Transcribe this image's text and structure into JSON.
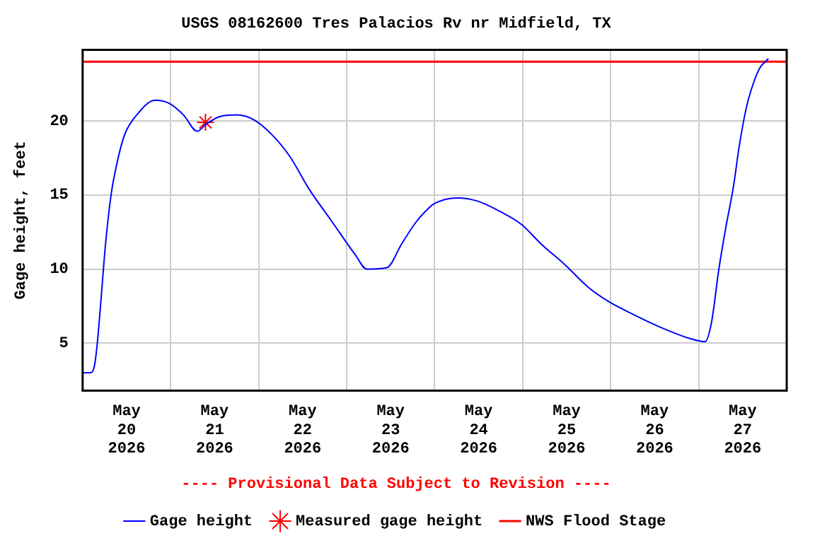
{
  "chart_data": {
    "type": "line",
    "title": "USGS 08162600 Tres Palacios Rv nr Midfield, TX",
    "ylabel": "Gage height, feet",
    "annotations": [
      "---- Provisional Data Subject to Revision ----"
    ],
    "xlim": [
      "2026-05-20T00:00",
      "2026-05-28T00:00"
    ],
    "xticks": [
      {
        "value": "2026-05-20T12:00",
        "label": "May\n20\n2026"
      },
      {
        "value": "2026-05-21T12:00",
        "label": "May\n21\n2026"
      },
      {
        "value": "2026-05-22T12:00",
        "label": "May\n22\n2026"
      },
      {
        "value": "2026-05-23T12:00",
        "label": "May\n23\n2026"
      },
      {
        "value": "2026-05-24T12:00",
        "label": "May\n24\n2026"
      },
      {
        "value": "2026-05-25T12:00",
        "label": "May\n25\n2026"
      },
      {
        "value": "2026-05-26T12:00",
        "label": "May\n26\n2026"
      },
      {
        "value": "2026-05-27T12:00",
        "label": "May\n27\n2026"
      },
      {
        "value": "2026-05-21T00:00",
        "label": null
      },
      {
        "value": "2026-05-22T00:00",
        "label": null
      },
      {
        "value": "2026-05-23T00:00",
        "label": null
      },
      {
        "value": "2026-05-24T00:00",
        "label": null
      },
      {
        "value": "2026-05-25T00:00",
        "label": null
      },
      {
        "value": "2026-05-26T00:00",
        "label": null
      },
      {
        "value": "2026-05-27T00:00",
        "label": null
      }
    ],
    "ylim": [
      1.8,
      24.8
    ],
    "yticks": [
      5,
      10,
      15,
      20
    ],
    "grid": true,
    "legend": "bottom",
    "ref_lines": [
      {
        "axis": "y",
        "value": 24.0,
        "label": "NWS Flood Stage",
        "color": "#ff0000"
      }
    ],
    "series": [
      {
        "name": "Gage height",
        "color": "#0000ff",
        "marker": "none",
        "x": [
          "2026-05-20T00:00",
          "2026-05-20T02:00",
          "2026-05-20T03:15",
          "2026-05-20T04:00",
          "2026-05-20T05:00",
          "2026-05-20T06:15",
          "2026-05-20T07:45",
          "2026-05-20T09:30",
          "2026-05-20T11:30",
          "2026-05-20T14:45",
          "2026-05-20T19:45",
          "2026-05-20T23:30",
          "2026-05-21T03:30",
          "2026-05-21T07:15",
          "2026-05-21T09:45",
          "2026-05-21T13:30",
          "2026-05-21T18:00",
          "2026-05-21T22:30",
          "2026-05-22T03:30",
          "2026-05-22T08:30",
          "2026-05-22T13:45",
          "2026-05-22T20:00",
          "2026-05-23T02:15",
          "2026-05-23T05:30",
          "2026-05-23T11:00",
          "2026-05-23T15:00",
          "2026-05-23T19:00",
          "2026-05-23T22:45",
          "2026-05-23T23:45",
          "2026-05-24T06:15",
          "2026-05-24T11:30",
          "2026-05-24T17:45",
          "2026-05-24T23:45",
          "2026-05-25T05:00",
          "2026-05-25T11:30",
          "2026-05-25T17:45",
          "2026-05-25T23:30",
          "2026-05-26T06:30",
          "2026-05-26T14:15",
          "2026-05-26T21:45",
          "2026-05-27T01:45",
          "2026-05-27T03:30",
          "2026-05-27T05:30",
          "2026-05-27T07:15",
          "2026-05-27T09:30",
          "2026-05-27T11:00",
          "2026-05-27T13:00",
          "2026-05-27T15:00",
          "2026-05-27T16:45",
          "2026-05-27T19:00"
        ],
        "values": [
          3.0,
          3.0,
          3.5,
          5.0,
          7.9,
          11.7,
          15.0,
          17.3,
          19.1,
          20.4,
          21.4,
          21.2,
          20.4,
          19.3,
          19.8,
          20.3,
          20.4,
          20.1,
          19.1,
          17.6,
          15.4,
          13.2,
          11.0,
          10.0,
          10.1,
          11.7,
          13.2,
          14.2,
          14.4,
          14.8,
          14.6,
          13.9,
          13.0,
          11.7,
          10.3,
          8.8,
          7.8,
          6.9,
          6.0,
          5.3,
          5.1,
          6.4,
          10.0,
          12.6,
          15.6,
          18.2,
          20.9,
          22.6,
          23.6,
          24.2
        ]
      },
      {
        "name": "Measured gage height",
        "color": "#ff0000",
        "type": "scatter",
        "marker": "cross",
        "x": [
          "2026-05-21T09:30"
        ],
        "values": [
          19.9
        ]
      }
    ]
  }
}
